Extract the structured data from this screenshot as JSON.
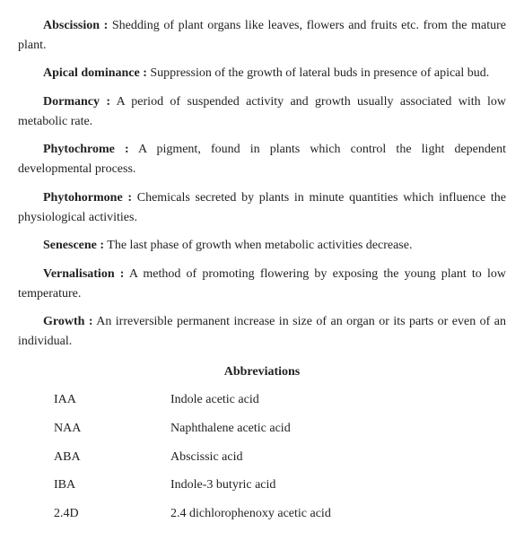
{
  "definitions": [
    {
      "term": "Abscission :",
      "text": " Shedding of plant organs like leaves, flowers and fruits etc. from the mature plant."
    },
    {
      "term": "Apical dominance :",
      "text": " Suppression of the growth of lateral buds in presence of apical bud."
    },
    {
      "term": "Dormancy :",
      "text": " A period of suspended activity and growth usually associated with low metabolic rate."
    },
    {
      "term": "Phytochrome :",
      "text": " A pigment, found in plants which control the light dependent developmental process."
    },
    {
      "term": "Phytohormone :",
      "text": " Chemicals secreted by plants in minute quantities which influence the physiological activities."
    },
    {
      "term": "Senescene :",
      "text": " The last phase of growth when metabolic activities decrease."
    },
    {
      "term": "Vernalisation :",
      "text": " A method of promoting flowering by exposing the young plant to low temperature."
    },
    {
      "term": "Growth :",
      "text": " An irreversible permanent increase in size of an organ or its parts or even of an individual."
    }
  ],
  "abbr_heading": "Abbreviations",
  "abbreviations": [
    {
      "short": "IAA",
      "long": "Indole acetic acid"
    },
    {
      "short": "NAA",
      "long": "Naphthalene acetic acid"
    },
    {
      "short": "ABA",
      "long": "Abscissic acid"
    },
    {
      "short": "IBA",
      "long": "Indole-3 butyric acid"
    },
    {
      "short": "2.4D",
      "long": "2.4 dichlorophenoxy acetic acid"
    }
  ]
}
